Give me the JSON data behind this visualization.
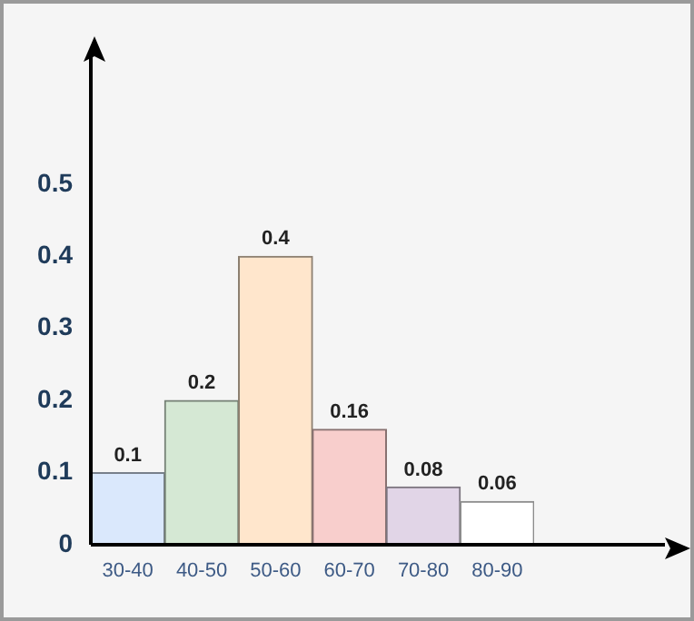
{
  "chart_data": {
    "type": "bar",
    "categories": [
      "30-40",
      "40-50",
      "50-60",
      "60-70",
      "70-80",
      "80-90"
    ],
    "values": [
      0.1,
      0.2,
      0.4,
      0.16,
      0.08,
      0.06
    ],
    "colors": [
      "#dae8fc",
      "#d5e8d4",
      "#ffe6cc",
      "#f8cecc",
      "#e1d5e7",
      "#ffffff"
    ],
    "ylim": [
      0,
      0.68
    ],
    "yticks": [
      0,
      0.1,
      0.2,
      0.3,
      0.4,
      0.5
    ],
    "grid": false,
    "legend": false,
    "data_labels": true
  }
}
